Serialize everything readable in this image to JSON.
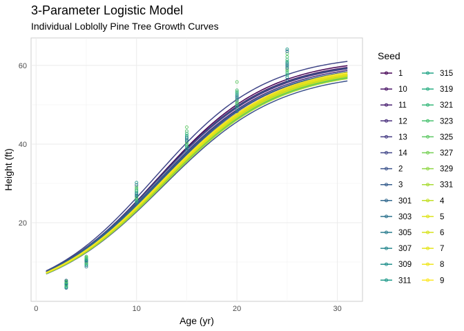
{
  "chart_data": {
    "type": "line",
    "title": "3-Parameter Logistic Model",
    "subtitle": "Individual Loblolly Pine Tree Growth Curves",
    "xlabel": "Age (yr)",
    "ylabel": "Height (ft)",
    "xlim": [
      -0.5,
      32.5
    ],
    "ylim": [
      0,
      67
    ],
    "x_ticks": [
      0,
      10,
      20,
      30
    ],
    "y_ticks": [
      20,
      40,
      60
    ],
    "grid": true,
    "legend": {
      "title": "Seed",
      "position": "right",
      "columns": 2
    },
    "curve_x_range": [
      1,
      31
    ],
    "series": [
      {
        "name": "1",
        "color": "#440154",
        "asym": 61.9,
        "xmid": 12.0,
        "scal": 5.55
      },
      {
        "name": "10",
        "color": "#471164",
        "asym": 61.5,
        "xmid": 12.0,
        "scal": 5.6
      },
      {
        "name": "11",
        "color": "#481F70",
        "asym": 61.2,
        "xmid": 12.0,
        "scal": 5.65
      },
      {
        "name": "12",
        "color": "#472D7B",
        "asym": 60.8,
        "xmid": 12.1,
        "scal": 5.65
      },
      {
        "name": "13",
        "color": "#443A83",
        "asym": 60.5,
        "xmid": 12.2,
        "scal": 5.7
      },
      {
        "name": "14",
        "color": "#404688",
        "asym": 62.9,
        "xmid": 11.8,
        "scal": 5.5
      },
      {
        "name": "2",
        "color": "#3B528B",
        "asym": 58.4,
        "xmid": 12.6,
        "scal": 5.8
      },
      {
        "name": "3",
        "color": "#365D8D",
        "asym": 61.3,
        "xmid": 12.0,
        "scal": 5.6
      },
      {
        "name": "301",
        "color": "#31688E",
        "asym": 60.4,
        "xmid": 12.1,
        "scal": 5.65
      },
      {
        "name": "303",
        "color": "#2C728E",
        "asym": 60.0,
        "xmid": 12.2,
        "scal": 5.7
      },
      {
        "name": "305",
        "color": "#287C8E",
        "asym": 59.8,
        "xmid": 12.3,
        "scal": 5.7
      },
      {
        "name": "307",
        "color": "#24868E",
        "asym": 59.6,
        "xmid": 12.3,
        "scal": 5.72
      },
      {
        "name": "309",
        "color": "#21908C",
        "asym": 59.4,
        "xmid": 12.4,
        "scal": 5.75
      },
      {
        "name": "311",
        "color": "#1F9A8A",
        "asym": 59.2,
        "xmid": 12.4,
        "scal": 5.75
      },
      {
        "name": "315",
        "color": "#20A486",
        "asym": 59.0,
        "xmid": 12.5,
        "scal": 5.78
      },
      {
        "name": "319",
        "color": "#27AD81",
        "asym": 59.5,
        "xmid": 12.4,
        "scal": 5.75
      },
      {
        "name": "321",
        "color": "#35B779",
        "asym": 59.7,
        "xmid": 12.4,
        "scal": 5.75
      },
      {
        "name": "323",
        "color": "#47C16E",
        "asym": 59.3,
        "xmid": 12.5,
        "scal": 5.78
      },
      {
        "name": "325",
        "color": "#5DC863",
        "asym": 59.1,
        "xmid": 12.5,
        "scal": 5.8
      },
      {
        "name": "327",
        "color": "#75D054",
        "asym": 59.6,
        "xmid": 12.4,
        "scal": 5.76
      },
      {
        "name": "329",
        "color": "#8FD744",
        "asym": 59.4,
        "xmid": 12.5,
        "scal": 5.78
      },
      {
        "name": "331",
        "color": "#A8DB34",
        "asym": 59.0,
        "xmid": 12.6,
        "scal": 5.8
      },
      {
        "name": "4",
        "color": "#C2DF23",
        "asym": 59.8,
        "xmid": 12.4,
        "scal": 5.75
      },
      {
        "name": "5",
        "color": "#DEE318",
        "asym": 60.1,
        "xmid": 12.5,
        "scal": 5.8
      },
      {
        "name": "6",
        "color": "#D6E21A",
        "asym": 59.6,
        "xmid": 12.5,
        "scal": 5.8
      },
      {
        "name": "7",
        "color": "#E5E419",
        "asym": 59.9,
        "xmid": 12.45,
        "scal": 5.78
      },
      {
        "name": "8",
        "color": "#EFE51C",
        "asym": 60.2,
        "xmid": 12.4,
        "scal": 5.76
      },
      {
        "name": "9",
        "color": "#FDE725",
        "asym": 60.5,
        "xmid": 12.4,
        "scal": 5.75
      }
    ],
    "observations": {
      "ages": [
        3,
        5,
        10,
        15,
        20,
        25
      ],
      "points": [
        {
          "age": 3,
          "values": [
            3.4,
            3.6,
            3.8,
            4.0,
            4.2,
            4.3,
            4.4,
            4.5,
            4.6,
            4.7,
            4.8,
            4.9,
            5.0,
            5.1,
            5.3
          ]
        },
        {
          "age": 5,
          "values": [
            8.8,
            9.2,
            9.5,
            9.7,
            9.9,
            10.1,
            10.2,
            10.4,
            10.5,
            10.6,
            10.8,
            11.0,
            11.2,
            11.4
          ]
        },
        {
          "age": 10,
          "values": [
            25.0,
            25.3,
            25.6,
            25.9,
            26.2,
            26.5,
            26.8,
            27.0,
            27.3,
            27.6,
            28.0,
            28.3,
            28.7,
            29.1,
            29.6,
            30.2
          ]
        },
        {
          "age": 15,
          "values": [
            38.3,
            38.8,
            39.3,
            39.7,
            40.1,
            40.5,
            40.8,
            41.1,
            41.5,
            41.8,
            42.2,
            42.7,
            43.3,
            44.3
          ]
        },
        {
          "age": 20,
          "values": [
            48.3,
            49.0,
            49.6,
            50.1,
            50.5,
            50.9,
            51.3,
            51.7,
            52.1,
            52.5,
            52.9,
            53.3,
            53.7,
            55.8
          ]
        },
        {
          "age": 25,
          "values": [
            56.4,
            57.0,
            57.6,
            58.1,
            58.6,
            59.0,
            59.4,
            59.8,
            60.2,
            60.6,
            61.0,
            61.5,
            62.2,
            63.0,
            63.6,
            64.1
          ]
        }
      ]
    }
  }
}
